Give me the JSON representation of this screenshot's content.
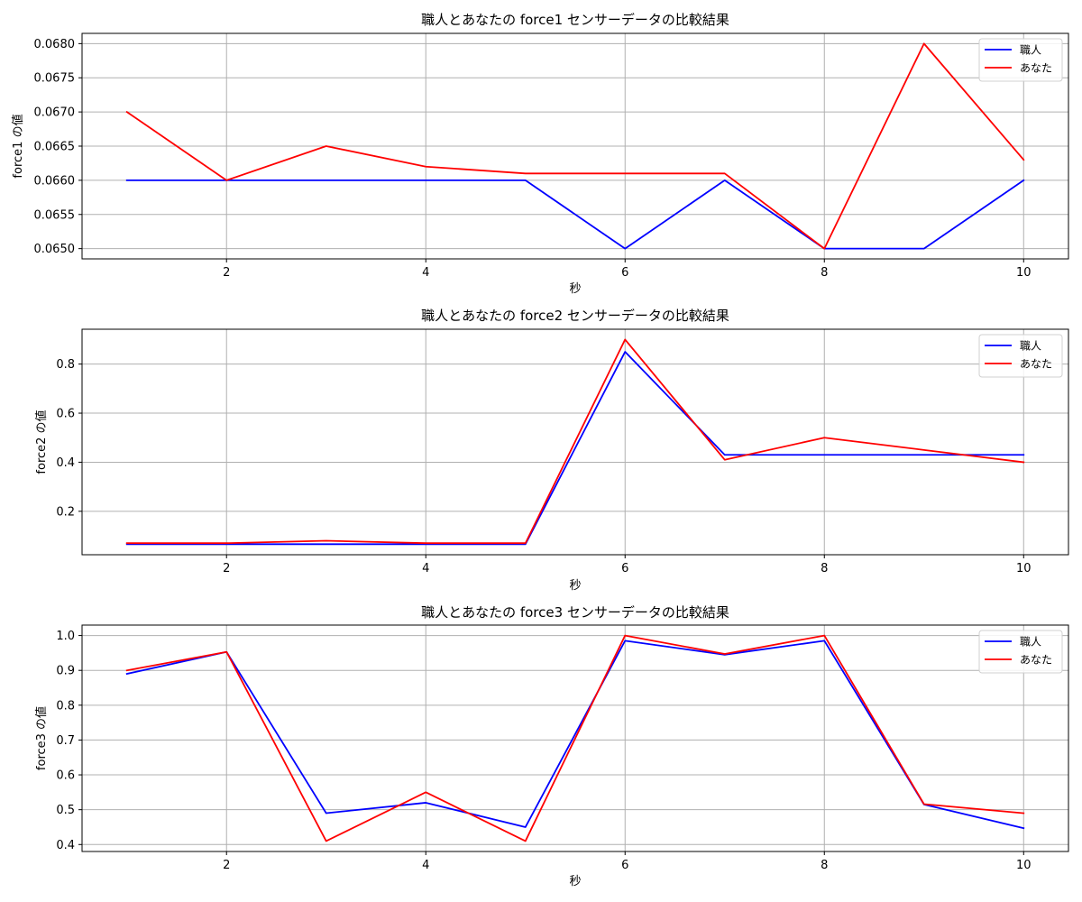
{
  "chart_data": [
    {
      "type": "line",
      "title": "職人とあなたの force1 センサーデータの比較結果",
      "xlabel": "秒",
      "ylabel": "force1 の値",
      "x": [
        1,
        2,
        3,
        4,
        5,
        6,
        7,
        8,
        9,
        10
      ],
      "xlim": [
        0.55,
        10.45
      ],
      "ylim": [
        0.06485,
        0.06815
      ],
      "xticks": [
        2,
        4,
        6,
        8,
        10
      ],
      "yticks": [
        0.065,
        0.0655,
        0.066,
        0.0665,
        0.067,
        0.0675,
        0.068
      ],
      "ytick_labels": [
        "0.0650",
        "0.0655",
        "0.0660",
        "0.0665",
        "0.0670",
        "0.0675",
        "0.0680"
      ],
      "grid": true,
      "legend_position": "top-right",
      "series": [
        {
          "name": "職人",
          "color": "#0000ff",
          "values": [
            0.066,
            0.066,
            0.066,
            0.066,
            0.066,
            0.065,
            0.066,
            0.065,
            0.065,
            0.066
          ]
        },
        {
          "name": "あなた",
          "color": "#ff0000",
          "values": [
            0.067,
            0.066,
            0.0665,
            0.0662,
            0.0661,
            0.0661,
            0.0661,
            0.065,
            0.068,
            0.0663
          ]
        }
      ]
    },
    {
      "type": "line",
      "title": "職人とあなたの force2 センサーデータの比較結果",
      "xlabel": "秒",
      "ylabel": "force2 の値",
      "x": [
        1,
        2,
        3,
        4,
        5,
        6,
        7,
        8,
        9,
        10
      ],
      "xlim": [
        0.55,
        10.45
      ],
      "ylim": [
        0.023,
        0.942
      ],
      "xticks": [
        2,
        4,
        6,
        8,
        10
      ],
      "yticks": [
        0.2,
        0.4,
        0.6,
        0.8
      ],
      "ytick_labels": [
        "0.2",
        "0.4",
        "0.6",
        "0.8"
      ],
      "grid": true,
      "legend_position": "top-right",
      "series": [
        {
          "name": "職人",
          "color": "#0000ff",
          "values": [
            0.066,
            0.066,
            0.066,
            0.066,
            0.066,
            0.85,
            0.43,
            0.43,
            0.43,
            0.43
          ]
        },
        {
          "name": "あなた",
          "color": "#ff0000",
          "values": [
            0.07,
            0.07,
            0.08,
            0.07,
            0.07,
            0.9,
            0.41,
            0.5,
            0.45,
            0.4
          ]
        }
      ]
    },
    {
      "type": "line",
      "title": "職人とあなたの force3 センサーデータの比較結果",
      "xlabel": "秒",
      "ylabel": "force3 の値",
      "x": [
        1,
        2,
        3,
        4,
        5,
        6,
        7,
        8,
        9,
        10
      ],
      "xlim": [
        0.55,
        10.45
      ],
      "ylim": [
        0.38,
        1.03
      ],
      "xticks": [
        2,
        4,
        6,
        8,
        10
      ],
      "yticks": [
        0.4,
        0.5,
        0.6,
        0.7,
        0.8,
        0.9,
        1.0
      ],
      "ytick_labels": [
        "0.4",
        "0.5",
        "0.6",
        "0.7",
        "0.8",
        "0.9",
        "1.0"
      ],
      "grid": true,
      "legend_position": "top-right",
      "series": [
        {
          "name": "職人",
          "color": "#0000ff",
          "values": [
            0.89,
            0.953,
            0.49,
            0.52,
            0.45,
            0.985,
            0.945,
            0.985,
            0.515,
            0.447
          ]
        },
        {
          "name": "あなた",
          "color": "#ff0000",
          "values": [
            0.9,
            0.953,
            0.41,
            0.55,
            0.41,
            1.0,
            0.947,
            1.0,
            0.516,
            0.49
          ]
        }
      ]
    }
  ]
}
